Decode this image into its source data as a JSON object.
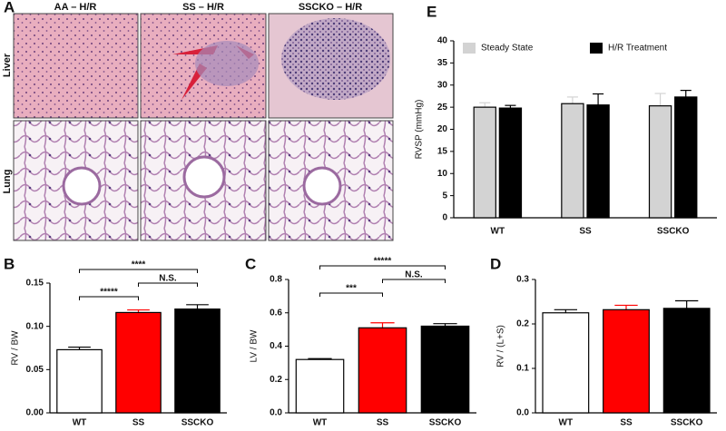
{
  "figure": {
    "panel": "A",
    "columns": [
      "AA – H/R",
      "SS – H/R",
      "SSCKO – H/R"
    ],
    "rows": [
      "Liver",
      "Lung"
    ]
  },
  "chart_data": [
    {
      "type": "grouped-bar",
      "panel": "E",
      "ylabel": "RVSP (mmHg)",
      "categories": [
        "WT",
        "SS",
        "SSCKO"
      ],
      "series": [
        {
          "name": "Steady State",
          "color": "#d3d3d3",
          "values": [
            25,
            25.8,
            25.3
          ],
          "errors": [
            1,
            1.5,
            2.8
          ]
        },
        {
          "name": "H/R Treatment",
          "color": "#000000",
          "values": [
            24.8,
            25.5,
            27.3
          ],
          "errors": [
            0.6,
            2.5,
            1.5
          ]
        }
      ],
      "ylim": [
        0,
        40
      ],
      "yticks": [
        0,
        5,
        10,
        15,
        20,
        25,
        30,
        35,
        40
      ]
    },
    {
      "type": "bar",
      "panel": "B",
      "ylabel": "RV / BW",
      "categories": [
        "WT",
        "SS",
        "SSCKO"
      ],
      "values": [
        0.073,
        0.116,
        0.12
      ],
      "errors": [
        0.003,
        0.003,
        0.005
      ],
      "colors": [
        "#ffffff",
        "#ff0000",
        "#000000"
      ],
      "ylim": [
        0,
        0.15
      ],
      "yticks": [
        {
          "value": 0,
          "label": "0.00"
        },
        {
          "value": 0.05,
          "label": "0.05"
        },
        {
          "value": 0.1,
          "label": "0.10"
        },
        {
          "value": 0.15,
          "label": "0.15"
        }
      ],
      "annotations": [
        "****",
        "*****",
        "N.S."
      ]
    },
    {
      "type": "bar",
      "panel": "C",
      "ylabel": "LV / BW",
      "categories": [
        "WT",
        "SS",
        "SSCKO"
      ],
      "values": [
        0.32,
        0.51,
        0.52
      ],
      "errors": [
        0.005,
        0.03,
        0.015
      ],
      "colors": [
        "#ffffff",
        "#ff0000",
        "#000000"
      ],
      "ylim": [
        0,
        0.8
      ],
      "yticks": [
        {
          "value": 0,
          "label": "0.0"
        },
        0.2,
        0.4,
        0.6,
        0.8
      ],
      "annotations": [
        "*****",
        "***",
        "N.S."
      ]
    },
    {
      "type": "bar",
      "panel": "D",
      "ylabel": "RV / (L+S)",
      "categories": [
        "WT",
        "SS",
        "SSCKO"
      ],
      "values": [
        0.225,
        0.232,
        0.235
      ],
      "errors": [
        0.007,
        0.01,
        0.017
      ],
      "colors": [
        "#ffffff",
        "#ff0000",
        "#000000"
      ],
      "ylim": [
        0,
        0.3
      ],
      "yticks": [
        {
          "value": 0,
          "label": "0.0"
        },
        0.1,
        0.2,
        0.3
      ]
    }
  ]
}
